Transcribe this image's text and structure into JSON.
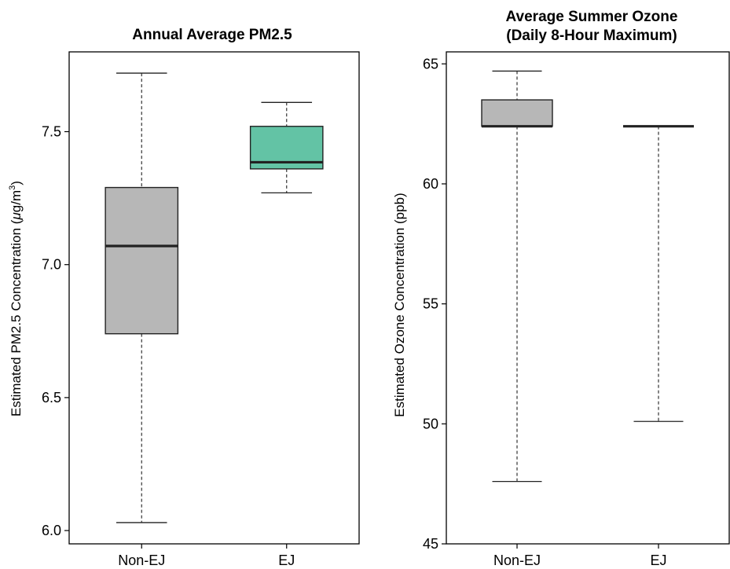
{
  "chart_data": [
    {
      "type": "box",
      "title": "Annual Average PM2.5",
      "ylabel_main": "Estimated PM2.5 Concentration (",
      "ylabel_unit_mu": "μ",
      "ylabel_unit_rest": "g/m",
      "ylabel_unit_exp": "3",
      "ylabel_close": ")",
      "ylim": [
        5.95,
        7.8
      ],
      "yticks": [
        6.0,
        6.5,
        7.0,
        7.5
      ],
      "ytick_labels": [
        "6.0",
        "6.5",
        "7.0",
        "7.5"
      ],
      "categories": [
        "Non-EJ",
        "EJ"
      ],
      "boxes": [
        {
          "category": "Non-EJ",
          "whisker_low": 6.03,
          "q1": 6.74,
          "median": 7.07,
          "q3": 7.29,
          "whisker_high": 7.72,
          "color": "#b7b7b7"
        },
        {
          "category": "EJ",
          "whisker_low": 7.27,
          "q1": 7.36,
          "median": 7.385,
          "q3": 7.52,
          "whisker_high": 7.61,
          "color": "#63c3a5"
        }
      ],
      "grid": false,
      "legend": "none"
    },
    {
      "type": "box",
      "title_line1": "Average Summer Ozone",
      "title_line2": "(Daily 8-Hour Maximum)",
      "ylabel": "Estimated Ozone Concentration (ppb)",
      "ylim": [
        45,
        65.5
      ],
      "yticks": [
        45,
        50,
        55,
        60,
        65
      ],
      "ytick_labels": [
        "45",
        "50",
        "55",
        "60",
        "65"
      ],
      "categories": [
        "Non-EJ",
        "EJ"
      ],
      "boxes": [
        {
          "category": "Non-EJ",
          "whisker_low": 47.6,
          "q1": 62.4,
          "median": 62.4,
          "q3": 63.5,
          "whisker_high": 64.7,
          "color": "#b7b7b7"
        },
        {
          "category": "EJ",
          "whisker_low": 50.1,
          "q1": 62.4,
          "median": 62.4,
          "q3": 62.4,
          "whisker_high": 62.4,
          "color": "#b7b7b7"
        }
      ],
      "grid": false,
      "legend": "none"
    }
  ]
}
